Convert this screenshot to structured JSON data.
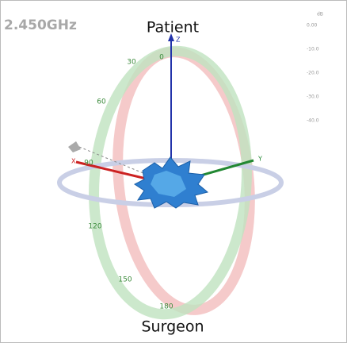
{
  "header": {
    "frequency": "2.450GHz",
    "top_label": "Patient",
    "bottom_label": "Surgeon"
  },
  "ring_labels": [
    "0",
    "30",
    "60",
    "90",
    "120",
    "150",
    "180"
  ],
  "axes": [
    "X",
    "Y",
    "Z"
  ],
  "scale": {
    "unit": "dB",
    "labels": [
      "0.00",
      "-10.0",
      "-20.0",
      "-30.0",
      "-40.0"
    ]
  }
}
